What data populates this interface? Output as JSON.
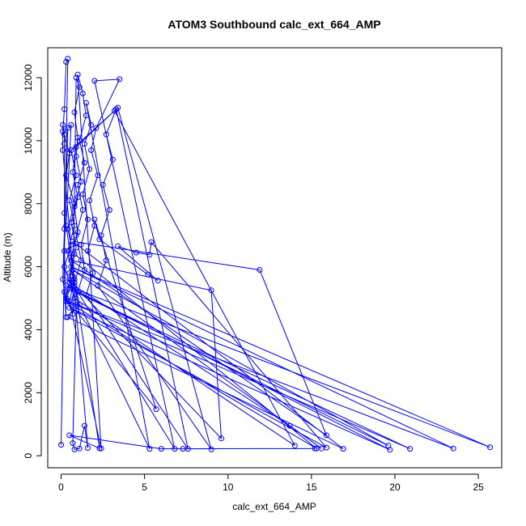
{
  "chart_data": {
    "type": "line",
    "title": "ATOM3 Southbound calc_ext_664_AMP",
    "xlabel": "calc_ext_664_AMP",
    "ylabel": "Altitude (m)",
    "xlim": [
      -0.8,
      26.4
    ],
    "ylim": [
      -380,
      12950
    ],
    "x_ticks": [
      0,
      5,
      10,
      15,
      20,
      25
    ],
    "x_tick_labels": [
      "0",
      "5",
      "10",
      "15",
      "20",
      "25"
    ],
    "y_ticks": [
      0,
      2000,
      4000,
      6000,
      8000,
      10000,
      12000
    ],
    "y_tick_labels": [
      "0",
      "2000",
      "4000",
      "6000",
      "8000",
      "10000",
      "12000"
    ],
    "grid": false,
    "series": [
      {
        "color": "#0000ff",
        "marker": "open-circle",
        "points": [
          [
            0.0,
            350
          ],
          [
            0.4,
            12600
          ],
          [
            0.3,
            12500
          ],
          [
            0.2,
            11000
          ],
          [
            0.1,
            10300
          ],
          [
            0.5,
            9600
          ],
          [
            0.3,
            8900
          ],
          [
            0.8,
            8000
          ],
          [
            0.4,
            7200
          ],
          [
            0.6,
            6700
          ],
          [
            0.2,
            6000
          ],
          [
            0.5,
            5500
          ],
          [
            0.3,
            5000
          ],
          [
            0.7,
            4500
          ],
          [
            0.9,
            12000
          ],
          [
            1.1,
            11700
          ],
          [
            0.8,
            10900
          ],
          [
            1.0,
            10100
          ],
          [
            0.9,
            9500
          ],
          [
            1.2,
            8700
          ],
          [
            0.8,
            7900
          ],
          [
            1.0,
            7100
          ],
          [
            0.6,
            6300
          ],
          [
            0.8,
            5600
          ],
          [
            0.5,
            4900
          ],
          [
            2.4,
            230
          ],
          [
            1.0,
            12100
          ],
          [
            1.3,
            11500
          ],
          [
            1.5,
            10800
          ],
          [
            1.1,
            10000
          ],
          [
            1.4,
            9300
          ],
          [
            1.0,
            8600
          ],
          [
            1.3,
            7800
          ],
          [
            0.9,
            7000
          ],
          [
            1.2,
            6200
          ],
          [
            0.8,
            5500
          ],
          [
            1.1,
            4800
          ],
          [
            5.3,
            220
          ],
          [
            1.5,
            11200
          ],
          [
            1.8,
            10500
          ],
          [
            1.4,
            9900
          ],
          [
            1.7,
            9100
          ],
          [
            1.3,
            8300
          ],
          [
            1.6,
            7500
          ],
          [
            1.2,
            6700
          ],
          [
            1.4,
            5900
          ],
          [
            1.0,
            5200
          ],
          [
            6.8,
            220
          ],
          [
            2.0,
            11900
          ],
          [
            3.5,
            11950
          ],
          [
            2.1,
            10400
          ],
          [
            1.8,
            9700
          ],
          [
            2.2,
            8900
          ],
          [
            1.7,
            8100
          ],
          [
            2.0,
            7300
          ],
          [
            1.6,
            6500
          ],
          [
            1.9,
            5800
          ],
          [
            1.5,
            5100
          ],
          [
            7.6,
            220
          ],
          [
            3.3,
            11000
          ],
          [
            2.7,
            10200
          ],
          [
            3.1,
            9400
          ],
          [
            2.5,
            8600
          ],
          [
            2.9,
            7800
          ],
          [
            2.4,
            7000
          ],
          [
            2.7,
            6200
          ],
          [
            2.2,
            5400
          ],
          [
            9.0,
            200
          ],
          [
            3.4,
            11050
          ],
          [
            0.9,
            9800
          ],
          [
            0.7,
            9000
          ],
          [
            1.0,
            8200
          ],
          [
            0.6,
            7400
          ],
          [
            0.9,
            6600
          ],
          [
            0.5,
            5800
          ],
          [
            0.8,
            5000
          ],
          [
            14.0,
            320
          ],
          [
            3.2,
            10950
          ],
          [
            0.6,
            9700
          ],
          [
            0.9,
            8900
          ],
          [
            0.5,
            8100
          ],
          [
            0.8,
            7300
          ],
          [
            0.4,
            6500
          ],
          [
            0.7,
            5700
          ],
          [
            0.3,
            4900
          ],
          [
            15.3,
            230
          ],
          [
            0.8,
            6400
          ],
          [
            0.5,
            5600
          ],
          [
            0.9,
            4800
          ],
          [
            0.4,
            4400
          ],
          [
            16.9,
            220
          ],
          [
            0.7,
            6800
          ],
          [
            11.9,
            5900
          ],
          [
            15.9,
            650
          ],
          [
            0.6,
            6200
          ],
          [
            9.0,
            5250
          ],
          [
            9.6,
            550
          ],
          [
            0.8,
            5400
          ],
          [
            13.7,
            950
          ],
          [
            15.6,
            230
          ],
          [
            0.7,
            5900
          ],
          [
            19.6,
            320
          ],
          [
            0.5,
            5300
          ],
          [
            20.9,
            220
          ],
          [
            0.4,
            4900
          ],
          [
            23.5,
            230
          ],
          [
            0.6,
            6000
          ],
          [
            25.7,
            270
          ],
          [
            0.3,
            5400
          ],
          [
            19.7,
            190
          ],
          [
            0.5,
            4700
          ],
          [
            15.9,
            260
          ],
          [
            5.4,
            6780
          ],
          [
            5.3,
            6380
          ],
          [
            4.5,
            6450
          ],
          [
            3.4,
            6650
          ],
          [
            5.8,
            5560
          ],
          [
            5.2,
            5750
          ],
          [
            2.3,
            6870
          ],
          [
            2.0,
            7500
          ],
          [
            5.7,
            1480
          ],
          [
            0.9,
            4600
          ],
          [
            0.7,
            400
          ],
          [
            0.8,
            200
          ],
          [
            1.1,
            230
          ],
          [
            1.4,
            950
          ],
          [
            1.6,
            250
          ],
          [
            0.1,
            9700
          ],
          [
            0.1,
            10500
          ],
          [
            0.2,
            10200
          ],
          [
            0.2,
            9900
          ],
          [
            0.2,
            7700
          ],
          [
            0.2,
            7200
          ],
          [
            0.1,
            5600
          ],
          [
            0.2,
            5200
          ],
          [
            0.3,
            4400
          ],
          [
            0.2,
            6500
          ],
          [
            0.4,
            10400
          ],
          [
            0.6,
            10500
          ],
          [
            0.3,
            7300
          ],
          [
            2.3,
            240
          ],
          [
            0.5,
            650
          ],
          [
            6.0,
            220
          ],
          [
            7.3,
            220
          ],
          [
            15.2,
            230
          ]
        ]
      }
    ]
  }
}
